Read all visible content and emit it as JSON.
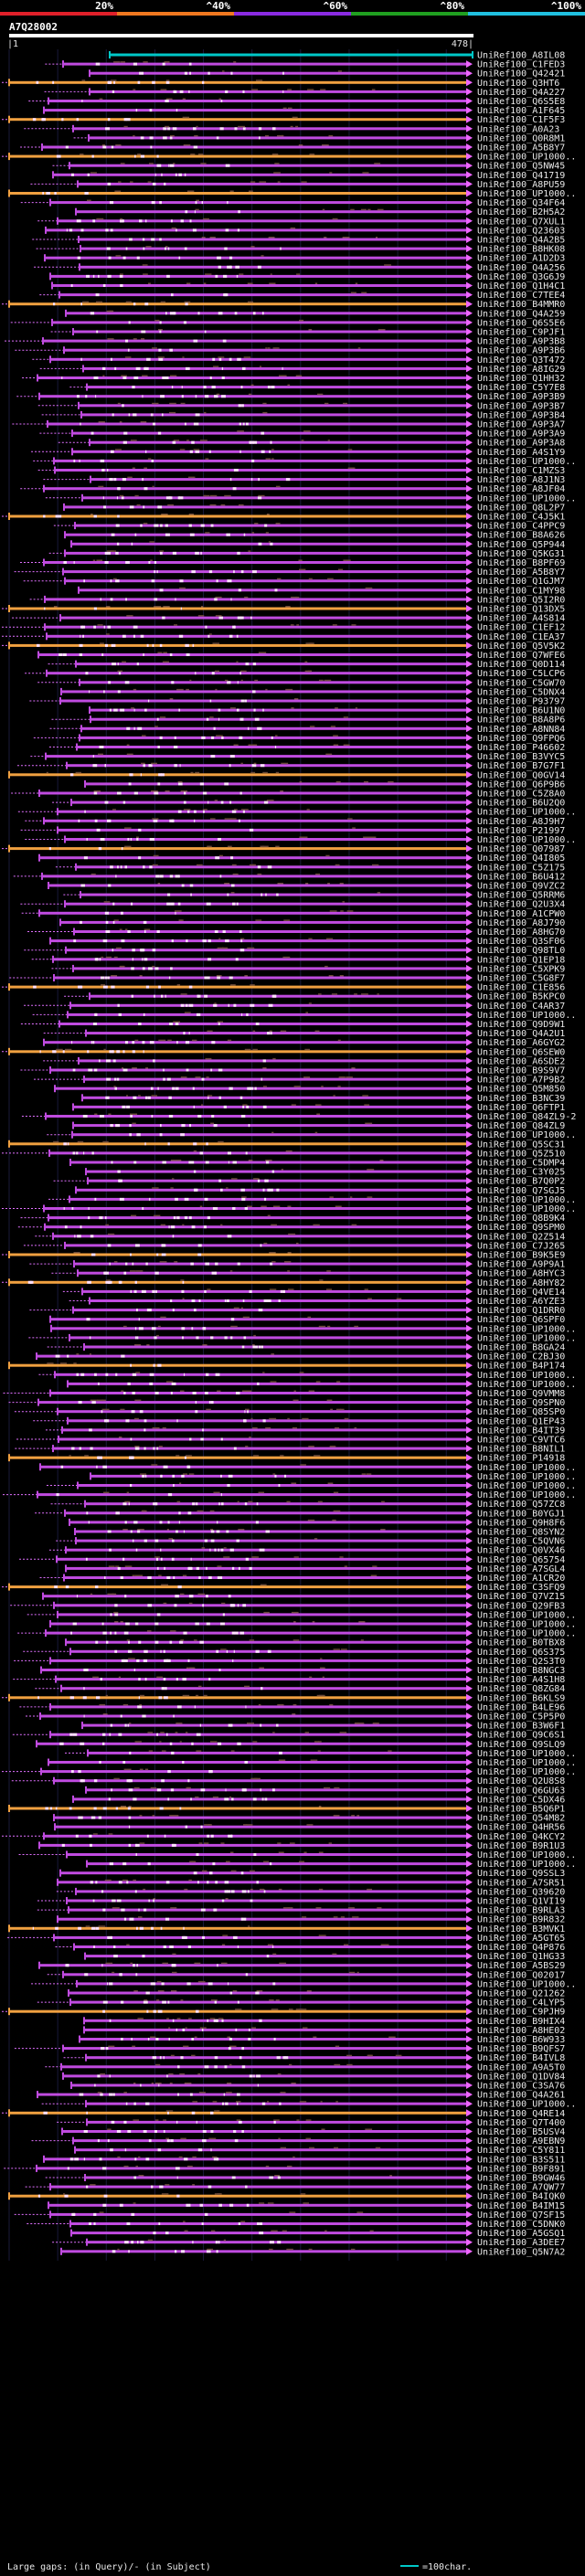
{
  "colors": {
    "background": "#000000",
    "grid": "#1a1a3a",
    "hit_normal": "#c04be0",
    "hit_long": "#f0a040",
    "whisker": "#e070ff",
    "arrow": "#ee66ff",
    "hsp": "#ffe0ff",
    "dots": "#6a4a3a",
    "ref": "#00c8c8",
    "query_bar": "#ffffff",
    "scale": [
      "#e0202a",
      "#f07820",
      "#8a2be2",
      "#20a020",
      "#20c0e0"
    ]
  },
  "chart_data": {
    "type": "alignment-overview",
    "query_id": "A7Q28002",
    "query_length": 478,
    "query_start": 1,
    "identity_scale": [
      "20%",
      "^40%",
      "^60%",
      "^80%",
      "^100%"
    ],
    "legend_text": "Large gaps: (in Query)/- (in Subject)",
    "legend_unit": "=100char.",
    "hits": [
      "UniRef100_A8IL08",
      "UniRef100_C1FED3",
      "UniRef100_Q42421",
      "UniRef100_Q3HT6",
      "UniRef100_Q4A227",
      "UniRef100_Q6S5E8",
      "UniRef100_A1F645",
      "UniRef100_C1F5F3",
      "UniRef100_A0A23",
      "UniRef100_Q0R8M1",
      "UniRef100_A5B8Y7",
      "UniRef100_UP1000..",
      "UniRef100_Q5NW45",
      "UniRef100_Q41719",
      "UniRef100_A8PU59",
      "UniRef100_UP1000..",
      "UniRef100_Q34F64",
      "UniRef100_B2H5A2",
      "UniRef100_Q7XUL1",
      "UniRef100_Q23603",
      "UniRef100_Q4A2B5",
      "UniRef100_B8HK08",
      "UniRef100_A1D2D3",
      "UniRef100_Q4A256",
      "UniRef100_Q3G6J9",
      "UniRef100_Q1H4C1",
      "UniRef100_C7TEE4",
      "UniRef100_B4MMR0",
      "UniRef100_Q4A259",
      "UniRef100_Q6S5E6",
      "UniRef100_C9PJF1",
      "UniRef100_A9P3B8",
      "UniRef100_A9P3B6",
      "UniRef100_Q3T472",
      "UniRef100_A8IG29",
      "UniRef100_Q1HH32",
      "UniRef100_C5Y7E8",
      "UniRef100_A9P3B9",
      "UniRef100_A9P3B7",
      "UniRef100_A9P3B4",
      "UniRef100_A9P3A7",
      "UniRef100_A9P3A9",
      "UniRef100_A9P3A8",
      "UniRef100_A4S1Y9",
      "UniRef100_UP1000..",
      "UniRef100_C1MZS3",
      "UniRef100_A8J1N3",
      "UniRef100_A8JF04",
      "UniRef100_UP1000..",
      "UniRef100_Q8L2P7",
      "UniRef100_C4J5K1",
      "UniRef100_C4PPC9",
      "UniRef100_B8A626",
      "UniRef100_Q5P944",
      "UniRef100_Q5KG31",
      "UniRef100_B8PF69",
      "UniRef100_A5B8Y7",
      "UniRef100_Q1GJM7",
      "UniRef100_C1MY98",
      "UniRef100_Q5I2R0",
      "UniRef100_Q13DX5",
      "UniRef100_A4S814",
      "UniRef100_C1EF12",
      "UniRef100_C1EA37",
      "UniRef100_Q5V5K2",
      "UniRef100_Q7WFE6",
      "UniRef100_Q0D114",
      "UniRef100_C5LCP6",
      "UniRef100_C5GW70",
      "UniRef100_C5DNX4",
      "UniRef100_P93797",
      "UniRef100_B6U1N0",
      "UniRef100_B8A8P6",
      "UniRef100_A8NN84",
      "UniRef100_Q9FPQ6",
      "UniRef100_P46602",
      "UniRef100_B3VYC5",
      "UniRef100_B7G7F1",
      "UniRef100_Q0GV14",
      "UniRef100_Q6P9B6",
      "UniRef100_C5Z8A0",
      "UniRef100_B6U2Q0",
      "UniRef100_UP1000..",
      "UniRef100_A8J9H7",
      "UniRef100_P21997",
      "UniRef100_UP1000..",
      "UniRef100_Q07987",
      "UniRef100_Q4I805",
      "UniRef100_C5Z175",
      "UniRef100_B6U412",
      "UniRef100_Q9VZC2",
      "UniRef100_Q5RRM6",
      "UniRef100_Q2U3X4",
      "UniRef100_A1CPW0",
      "UniRef100_A8J790",
      "UniRef100_A8HG70",
      "UniRef100_Q3SF06",
      "UniRef100_Q98TL0",
      "UniRef100_Q1EP18",
      "UniRef100_C5XPK9",
      "UniRef100_C5G8F7",
      "UniRef100_C1E856",
      "UniRef100_B5KPC0",
      "UniRef100_C4AR37",
      "UniRef100_UP1000..",
      "UniRef100_Q9D9W1",
      "UniRef100_Q4A2U1",
      "UniRef100_A6GYG2",
      "UniRef100_Q6SEW0",
      "UniRef100_A6SDE2",
      "UniRef100_B9S9V7",
      "UniRef100_A7P9B2",
      "UniRef100_Q5M850",
      "UniRef100_B3NC39",
      "UniRef100_Q6FTP1",
      "UniRef100_Q84ZL9-2",
      "UniRef100_Q84ZL9",
      "UniRef100_UP1000..",
      "UniRef100_Q5SC31",
      "UniRef100_Q5Z510",
      "UniRef100_C5DMP4",
      "UniRef100_C3Y025",
      "UniRef100_B7Q0P2",
      "UniRef100_Q7SGJ5",
      "UniRef100_UP1000..",
      "UniRef100_UP1000..",
      "UniRef100_Q8B9K4",
      "UniRef100_Q9SPM0",
      "UniRef100_Q2Z514",
      "UniRef100_C7J265",
      "UniRef100_B9K5E9",
      "UniRef100_A9P9A1",
      "UniRef100_A8HYC3",
      "UniRef100_A8HY82",
      "UniRef100_Q4VE14",
      "UniRef100_A6YZE3",
      "UniRef100_Q1DRR0",
      "UniRef100_Q6SPF0",
      "UniRef100_UP1000..",
      "UniRef100_UP1000..",
      "UniRef100_B8GA24",
      "UniRef100_C2BJ30",
      "UniRef100_B4P174",
      "UniRef100_UP1000..",
      "UniRef100_UP1000..",
      "UniRef100_Q9VMM8",
      "UniRef100_Q9SPN0",
      "UniRef100_Q85SP0",
      "UniRef100_Q1EP43",
      "UniRef100_B4IT39",
      "UniRef100_C9VTC6",
      "UniRef100_B8NIL1",
      "UniRef100_P14918",
      "UniRef100_UP1000..",
      "UniRef100_UP1000..",
      "UniRef100_UP1000..",
      "UniRef100_UP1000..",
      "UniRef100_Q57ZC8",
      "UniRef100_B0YGJ1",
      "UniRef100_Q9H8F6",
      "UniRef100_Q8SYN2",
      "UniRef100_C5QVN6",
      "UniRef100_Q0VX46",
      "UniRef100_Q65754",
      "UniRef100_A7SGL4",
      "UniRef100_A1CR20",
      "UniRef100_C3SFQ9",
      "UniRef100_Q7VZ15",
      "UniRef100_Q29FB3",
      "UniRef100_UP1000..",
      "UniRef100_UP1000..",
      "UniRef100_UP1000..",
      "UniRef100_B0TBX8",
      "UniRef100_Q6S375",
      "UniRef100_Q2S3T0",
      "UniRef100_B8NGC3",
      "UniRef100_A4S1H8",
      "UniRef100_Q8ZG84",
      "UniRef100_B6KLS9",
      "UniRef100_B4LE96",
      "UniRef100_C5P5P0",
      "UniRef100_B3W6F1",
      "UniRef100_Q9C6S1",
      "UniRef100_Q9SLQ9",
      "UniRef100_UP1000..",
      "UniRef100_UP1000..",
      "UniRef100_UP1000..",
      "UniRef100_Q2U8S8",
      "UniRef100_Q6GU63",
      "UniRef100_C5DX46",
      "UniRef100_B5Q6P1",
      "UniRef100_Q54M82",
      "UniRef100_Q4HR56",
      "UniRef100_Q4KCY2",
      "UniRef100_B9R1U3",
      "UniRef100_UP1000..",
      "UniRef100_UP1000..",
      "UniRef100_Q9SSL3",
      "UniRef100_A7SR51",
      "UniRef100_Q39620",
      "UniRef100_Q1VI19",
      "UniRef100_B9RLA3",
      "UniRef100_B9R832",
      "UniRef100_B3MVK1",
      "UniRef100_A5GT65",
      "UniRef100_Q4P876",
      "UniRef100_Q1HG33",
      "UniRef100_A5BS29",
      "UniRef100_Q02017",
      "UniRef100_UP1000..",
      "UniRef100_Q21262",
      "UniRef100_C4LYP5",
      "UniRef100_C9PJH9",
      "UniRef100_B9HIX4",
      "UniRef100_A8HE02",
      "UniRef100_B6W933",
      "UniRef100_B9QFS7",
      "UniRef100_B4IVL8",
      "UniRef100_A9A5T0",
      "UniRef100_Q1DV84",
      "UniRef100_C3SA76",
      "UniRef100_Q4A261",
      "UniRef100_UP1000..",
      "UniRef100_Q4RE14",
      "UniRef100_Q7T400",
      "UniRef100_B5USV4",
      "UniRef100_A9EBN9",
      "UniRef100_C5Y811",
      "UniRef100_B3S511",
      "UniRef100_B9F891",
      "UniRef100_B9GW46",
      "UniRef100_A7QW77",
      "UniRef100_B4IQK0",
      "UniRef100_B4IM15",
      "UniRef100_Q7SF15",
      "UniRef100_C5DNK0",
      "UniRef100_A5GSQ1",
      "UniRef100_A3DEE7",
      "UniRef100_Q5N7A2"
    ]
  }
}
